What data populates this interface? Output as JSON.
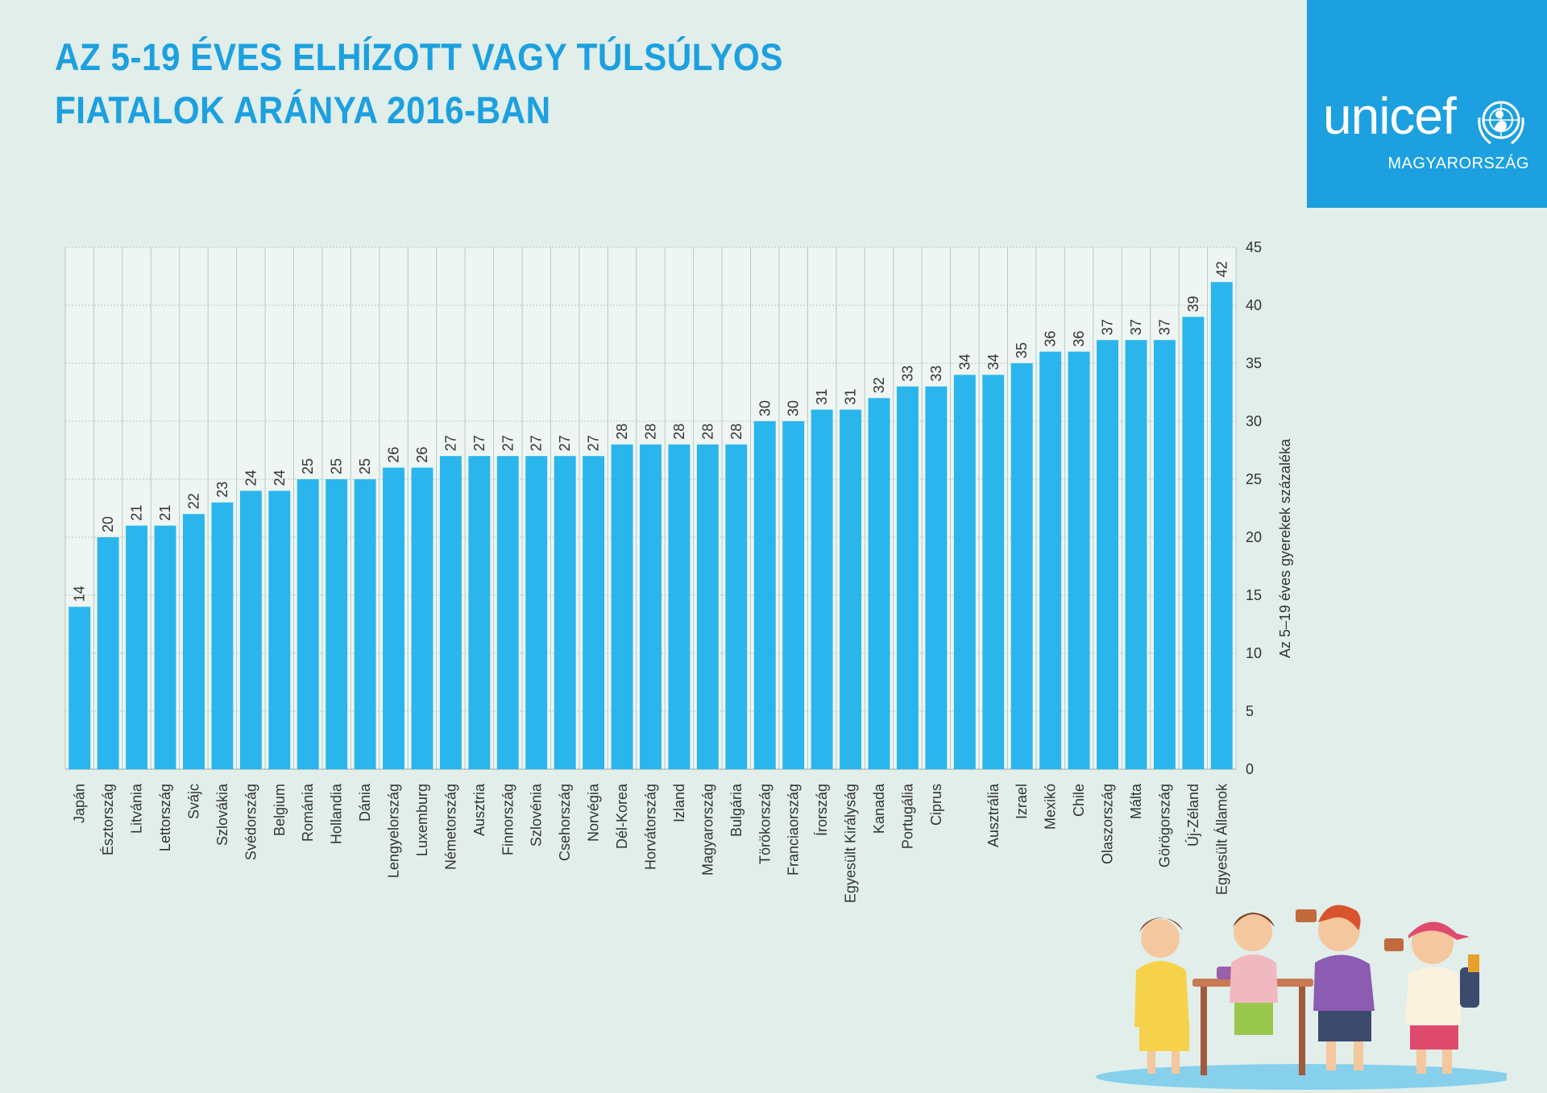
{
  "title": {
    "line1": "AZ 5-19 ÉVES ELHÍZOTT VAGY TÚLSÚLYOS",
    "line2": "FIATALOK ARÁNYA 2016-BAN"
  },
  "logo": {
    "word": "unicef",
    "sub": "MAGYARORSZÁG"
  },
  "colors": {
    "background": "#e1eeea",
    "bar": "#2ab6ed",
    "title": "#1ca0df",
    "logo_box": "#1ca0df",
    "gridline": "#b8c8c4",
    "plot_background": "#eef5f2"
  },
  "chart_data": {
    "type": "bar",
    "title": "AZ 5-19 ÉVES ELHÍZOTT VAGY TÚLSÚLYOS FIATALOK ARÁNYA 2016-BAN",
    "xlabel": "",
    "ylabel": "Az 5–19 éves gyerekek százaléka",
    "ylim": [
      0,
      45
    ],
    "yticks": [
      0,
      5,
      10,
      15,
      20,
      25,
      30,
      35,
      40,
      45
    ],
    "y_axis_side": "right",
    "grid": true,
    "data_labels": true,
    "categories": [
      "Japán",
      "Észtország",
      "Litvánia",
      "Lettország",
      "Svájc",
      "Szlovákia",
      "Svédország",
      "Belgium",
      "Románia",
      "Hollandia",
      "Dánia",
      "Lengyelország",
      "Luxemburg",
      "Németország",
      "Ausztria",
      "Finnország",
      "Szlovénia",
      "Csehország",
      "Norvégia",
      "Dél-Korea",
      "Horvátország",
      "Izland",
      "Magyarország",
      "Bulgária",
      "Törökország",
      "Franciaország",
      "Írország",
      "Egyesült Királyság",
      "Kanada",
      "Portugália",
      "Ciprus",
      "",
      "Ausztrália",
      "Izrael",
      "Mexikó",
      "Chile",
      "Olaszország",
      "Málta",
      "Görögország",
      "Új-Zéland",
      "Egyesült Államok"
    ],
    "values": [
      14,
      20,
      21,
      21,
      22,
      23,
      24,
      24,
      25,
      25,
      25,
      26,
      26,
      27,
      27,
      27,
      27,
      27,
      27,
      28,
      28,
      28,
      28,
      28,
      30,
      30,
      31,
      31,
      32,
      33,
      33,
      34,
      34,
      35,
      36,
      36,
      37,
      37,
      37,
      39,
      42
    ]
  }
}
